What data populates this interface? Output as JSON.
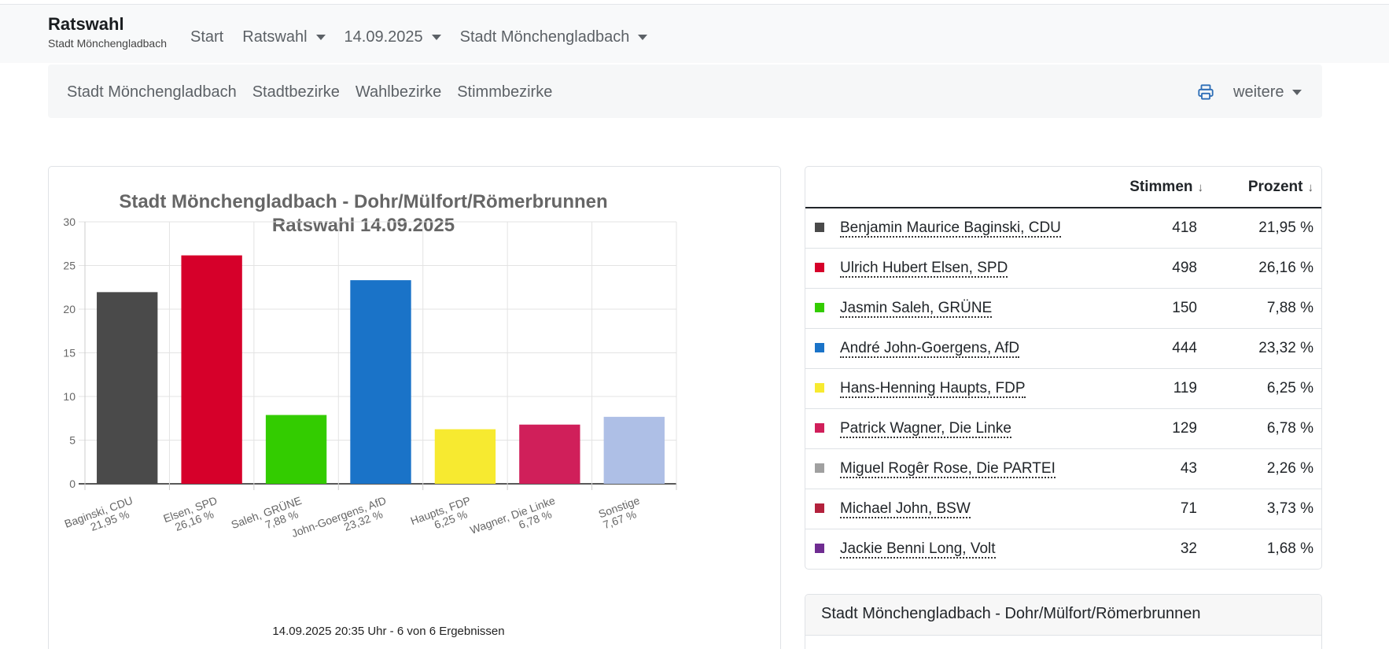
{
  "brand": {
    "title": "Ratswahl",
    "subtitle": "Stadt Mönchengladbach"
  },
  "nav": [
    {
      "label": "Start",
      "dropdown": false
    },
    {
      "label": "Ratswahl",
      "dropdown": true
    },
    {
      "label": "14.09.2025",
      "dropdown": true
    },
    {
      "label": "Stadt Mönchengladbach",
      "dropdown": true
    }
  ],
  "subnav": {
    "links": [
      "Stadt Mönchengladbach",
      "Stadtbezirke",
      "Wahlbezirke",
      "Stimmbezirke"
    ],
    "print_icon": "printer-icon",
    "more_label": "weitere"
  },
  "chart_data": {
    "type": "bar",
    "title": [
      "Stadt Mönchengladbach - Dohr/Mülfort/Römerbrunnen",
      "Ratswahl 14.09.2025"
    ],
    "categories": [
      [
        "Baginski, CDU",
        "21,95 %"
      ],
      [
        "Elsen, SPD",
        "26,16 %"
      ],
      [
        "Saleh, GRÜNE",
        "7,88 %"
      ],
      [
        "John-Goergens, AfD",
        "23,32 %"
      ],
      [
        "Haupts, FDP",
        "6,25 %"
      ],
      [
        "Wagner, Die Linke",
        "6,78 %"
      ],
      [
        "Sonstige",
        "7,67 %"
      ]
    ],
    "values": [
      21.95,
      26.16,
      7.88,
      23.32,
      6.25,
      6.78,
      7.67
    ],
    "colors": [
      "#4a4a4a",
      "#d6002a",
      "#33cc00",
      "#1a73c8",
      "#f7ea30",
      "#d01f5a",
      "#aebfe6"
    ],
    "ylim": [
      0,
      30
    ],
    "yticks": [
      0,
      5,
      10,
      15,
      20,
      25,
      30
    ],
    "grid": true,
    "footer": "14.09.2025 20:35 Uhr - 6 von 6 Ergebnissen"
  },
  "table": {
    "headers": {
      "votes": "Stimmen",
      "percent": "Prozent",
      "sort_icon": "↓"
    },
    "rows": [
      {
        "color": "#4a4a4a",
        "name": "Benjamin Maurice Baginski, CDU",
        "votes": "418",
        "percent": "21,95 %"
      },
      {
        "color": "#d6002a",
        "name": "Ulrich Hubert Elsen, SPD",
        "votes": "498",
        "percent": "26,16 %"
      },
      {
        "color": "#33cc00",
        "name": "Jasmin Saleh, GRÜNE",
        "votes": "150",
        "percent": "7,88 %"
      },
      {
        "color": "#1a73c8",
        "name": "André John-Goergens, AfD",
        "votes": "444",
        "percent": "23,32 %"
      },
      {
        "color": "#f7ea30",
        "name": "Hans-Henning Haupts, FDP",
        "votes": "119",
        "percent": "6,25 %"
      },
      {
        "color": "#d01f5a",
        "name": "Patrick Wagner, Die Linke",
        "votes": "129",
        "percent": "6,78 %"
      },
      {
        "color": "#a0a0a0",
        "name": "Miguel Rogêr Rose, Die PARTEI",
        "votes": "43",
        "percent": "2,26 %"
      },
      {
        "color": "#b3213c",
        "name": "Michael John, BSW",
        "votes": "71",
        "percent": "3,73 %"
      },
      {
        "color": "#6f2c91",
        "name": "Jackie Benni Long, Volt",
        "votes": "32",
        "percent": "1,68 %"
      }
    ]
  },
  "area_card": {
    "title": "Stadt Mönchengladbach - Dohr/Mülfort/Römerbrunnen"
  }
}
